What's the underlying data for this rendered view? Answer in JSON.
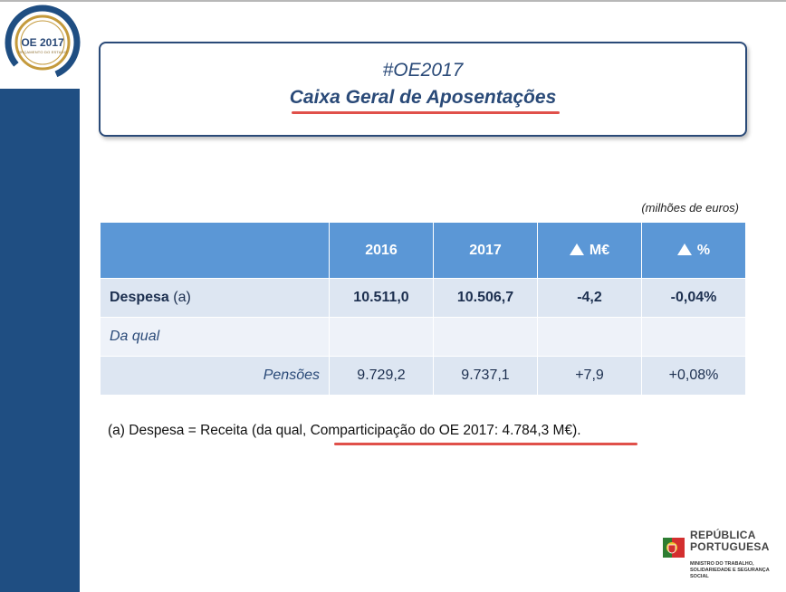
{
  "logo": {
    "text": "OE 2017",
    "subtext": "ORÇAMENTO DO ESTADO"
  },
  "title": {
    "hashtag": "#OE2017",
    "main": "Caixa Geral de Aposentações"
  },
  "table": {
    "units": "(milhões de euros)",
    "headers": [
      "",
      "2016",
      "2017",
      "M€",
      "%"
    ],
    "rows": [
      {
        "label_bold": "Despesa",
        "label_suffix": " (a)",
        "v2016": "10.511,0",
        "v2017": "10.506,7",
        "delta": "-4,2",
        "pct": "-0,04%"
      },
      {
        "label": "Da qual",
        "v2016": "",
        "v2017": "",
        "delta": "",
        "pct": ""
      },
      {
        "label": "Pensões",
        "v2016": "9.729,2",
        "v2017": "9.737,1",
        "delta": "+7,9",
        "pct": "+0,08%"
      }
    ]
  },
  "note": {
    "prefix": "(a)   Despesa = Receita (da qual, ",
    "highlight": "Comparticipação do OE 2017: 4.784,3 M€)",
    "suffix": "."
  },
  "footer": {
    "gov_line1": "REPÚBLICA",
    "gov_line2": "PORTUGUESA",
    "ministry_line1": "MINISTRO DO TRABALHO,",
    "ministry_line2": "SOLIDARIEDADE E SEGURANÇA SOCIAL"
  },
  "colors": {
    "brand_blue": "#1f4e82",
    "header_blue": "#5b97d6",
    "underline_red": "#e0504a",
    "gold": "#c49a3c"
  }
}
